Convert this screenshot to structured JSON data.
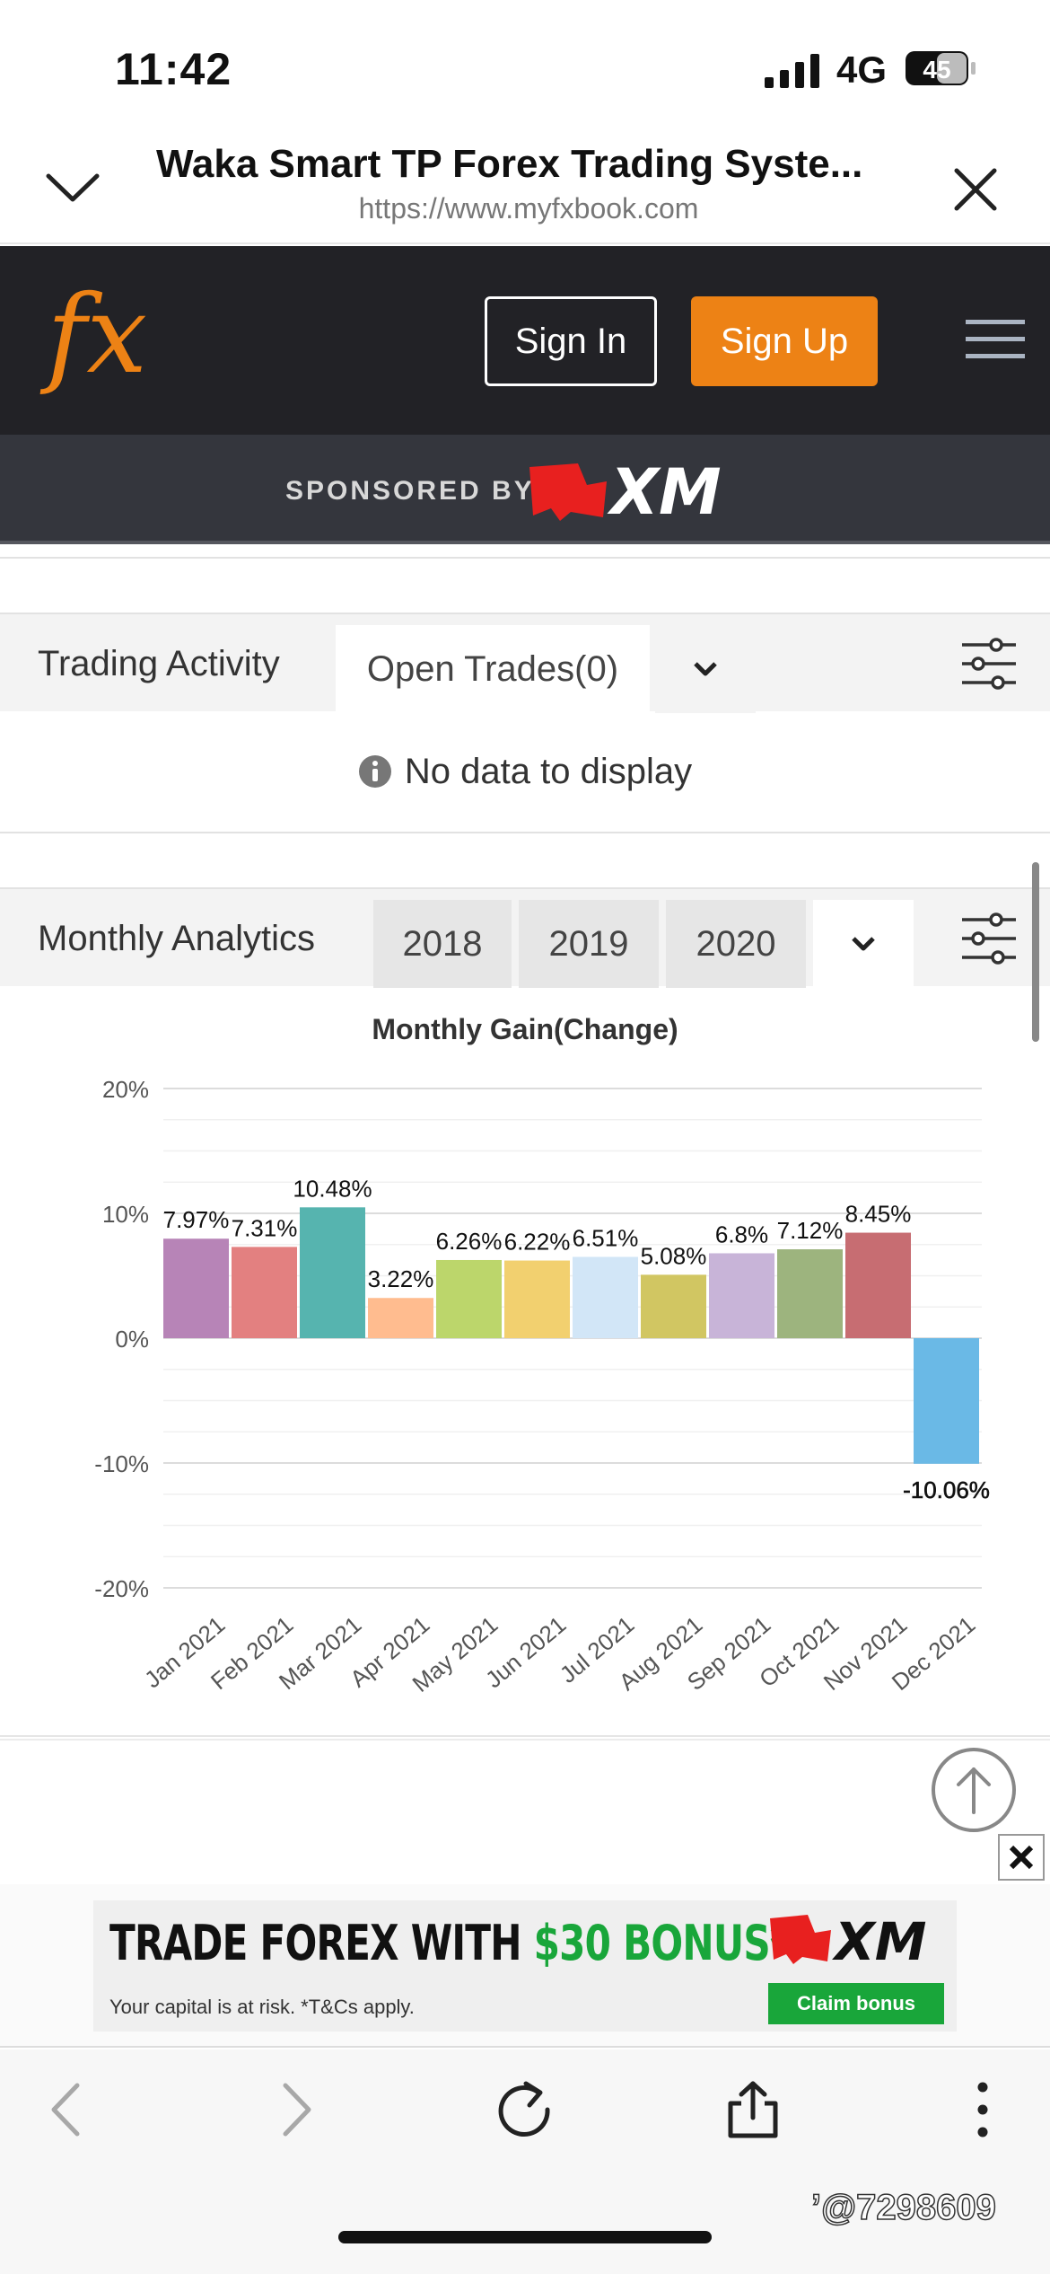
{
  "status_bar": {
    "time": "11:42",
    "network": "4G",
    "battery": "45"
  },
  "browser_header": {
    "title": "Waka Smart TP Forex Trading Syste...",
    "url": "https://www.myfxbook.com"
  },
  "site_nav": {
    "logo_text": "fx",
    "sign_in_label": "Sign In",
    "sign_up_label": "Sign Up",
    "sponsored_by_label": "SPONSORED BY",
    "sponsor_logo_text": "XM",
    "colors": {
      "nav_bg": "#222226",
      "signup_bg": "#ed8215",
      "sponsor_bg": "#34363d"
    }
  },
  "trading_activity": {
    "title": "Trading Activity",
    "active_tab": "Open Trades(0)",
    "empty_message": "No data to display"
  },
  "monthly_analytics": {
    "title": "Monthly Analytics",
    "year_tabs": [
      "2018",
      "2019",
      "2020"
    ]
  },
  "chart_data": {
    "type": "bar",
    "title": "Monthly Gain(Change)",
    "xlabel": "",
    "ylabel": "",
    "categories": [
      "Jan 2021",
      "Feb 2021",
      "Mar 2021",
      "Apr 2021",
      "May 2021",
      "Jun 2021",
      "Jul 2021",
      "Aug 2021",
      "Sep 2021",
      "Oct 2021",
      "Nov 2021",
      "Dec 2021"
    ],
    "values": [
      7.97,
      7.31,
      10.48,
      3.22,
      6.26,
      6.22,
      6.51,
      5.08,
      6.8,
      7.12,
      8.45,
      -10.06
    ],
    "value_labels": [
      "7.97%",
      "7.31%",
      "10.48%",
      "3.22%",
      "6.26%",
      "6.22%",
      "6.51%",
      "5.08%",
      "6.8%",
      "7.12%",
      "8.45%",
      "-10.06%"
    ],
    "colors": [
      "#b784b7",
      "#e38080",
      "#56b4af",
      "#ffbc8f",
      "#bcd66b",
      "#f2d06f",
      "#d2e6f7",
      "#d1c662",
      "#c8b4d8",
      "#9db47e",
      "#c76d72",
      "#6ab9e6"
    ],
    "y_ticks": [
      "20%",
      "10%",
      "0%",
      "-10%",
      "-20%"
    ],
    "ylim": [
      -20,
      20
    ],
    "grid": true,
    "legend": "none"
  },
  "ad_banner": {
    "headline_part1": "TRADE FOREX WITH ",
    "headline_bonus": "$30 BONUS*",
    "fine_print": "Your capital is at risk. *T&Cs apply.",
    "logo_text": "XM",
    "cta_label": "Claim bonus"
  },
  "watermark": "’@7298609",
  "icons": {
    "header": [
      "chevron-down-icon",
      "close-icon"
    ],
    "nav": [
      "hamburger-menu-icon"
    ],
    "sections": [
      "chevron-down-icon",
      "filter-sliders-icon",
      "info-icon"
    ],
    "toolbar": [
      "back-arrow-icon",
      "forward-arrow-icon",
      "reload-icon",
      "share-icon",
      "more-vertical-icon"
    ],
    "misc": [
      "scroll-to-top-icon",
      "ad-close-icon"
    ]
  }
}
